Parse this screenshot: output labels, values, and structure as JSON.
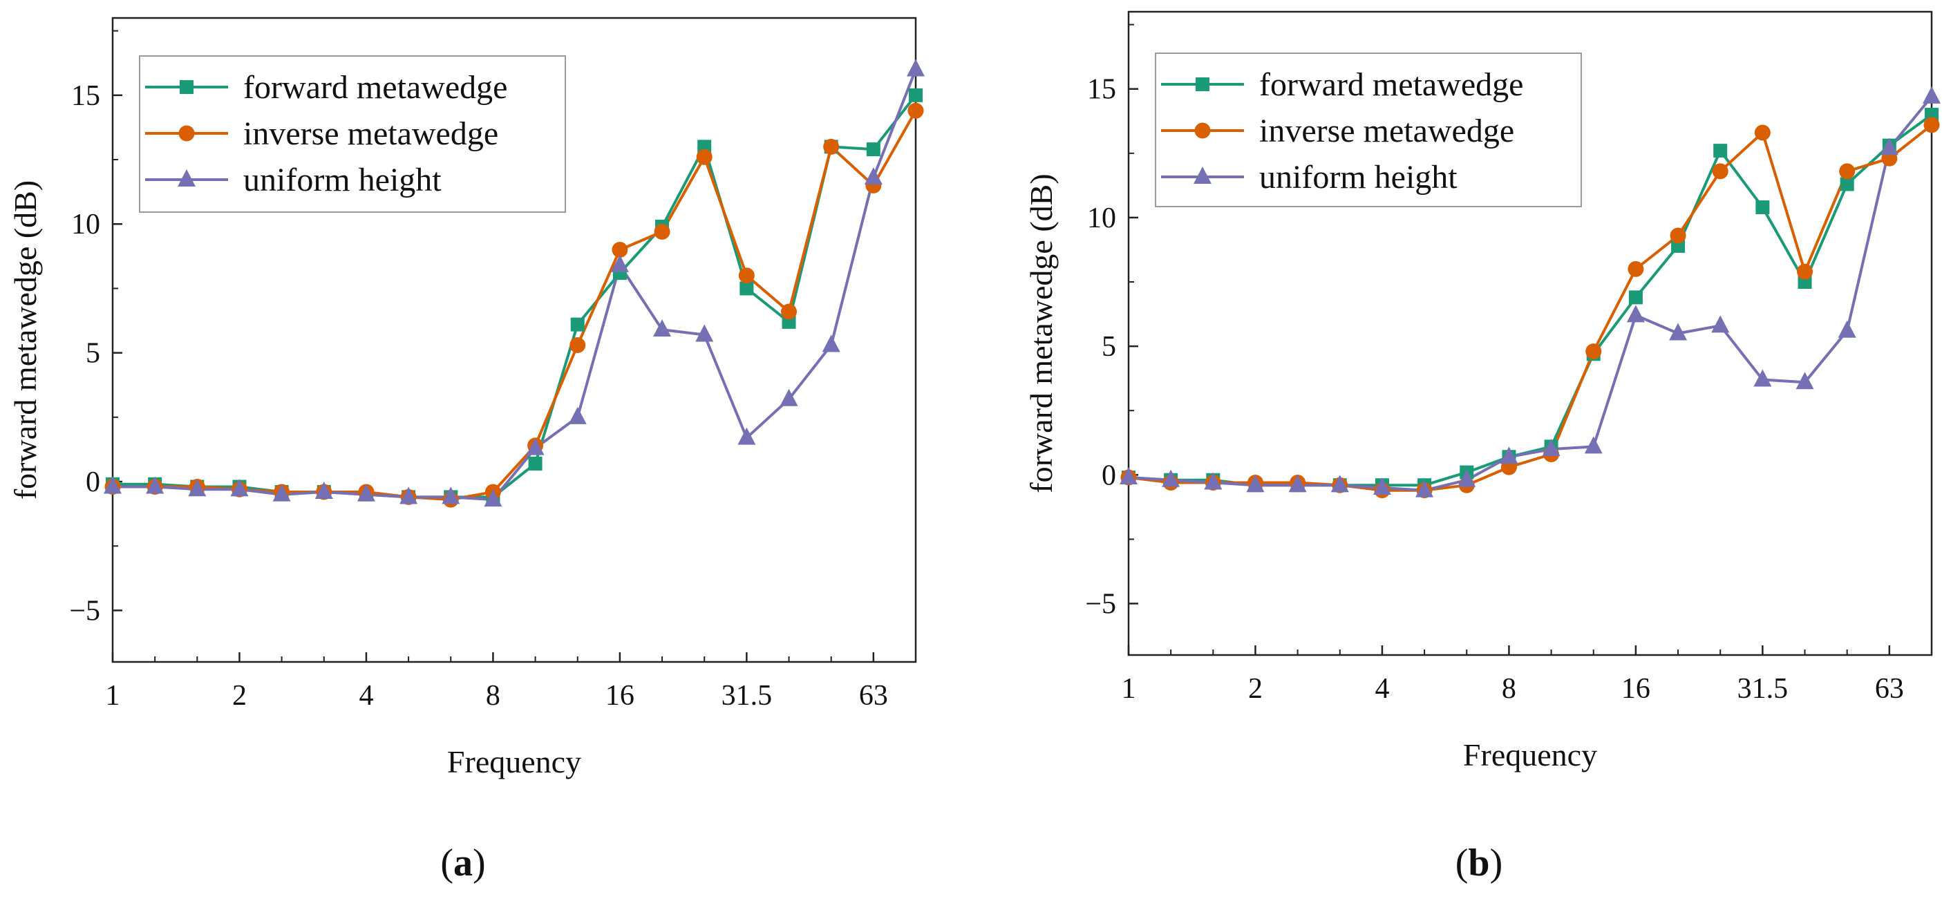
{
  "chart_data": [
    {
      "type": "line",
      "panel_label": "a",
      "xlabel": "Frequency",
      "ylabel": "forward metawedge (dB)",
      "x_tick_labels": [
        "1",
        "2",
        "4",
        "8",
        "16",
        "31.5",
        "63"
      ],
      "x_tick_values": [
        0,
        3,
        6,
        9,
        12,
        15,
        18
      ],
      "xlim": [
        0,
        19
      ],
      "ylim": [
        -7,
        18
      ],
      "y_ticks": [
        -5,
        0,
        5,
        10,
        15
      ],
      "y_tick_labels": [
        "−5",
        "0",
        "5",
        "10",
        "15"
      ],
      "legend_position": "top-left",
      "series": [
        {
          "name": "forward metawedge",
          "color": "#1a9a77",
          "marker": "square",
          "x": [
            0,
            1,
            2,
            3,
            4,
            5,
            6,
            7,
            8,
            9,
            10,
            11,
            12,
            13,
            14,
            15,
            16,
            17,
            18,
            19
          ],
          "values": [
            -0.1,
            -0.1,
            -0.2,
            -0.2,
            -0.4,
            -0.4,
            -0.5,
            -0.6,
            -0.6,
            -0.6,
            0.7,
            6.1,
            8.1,
            9.9,
            13.0,
            7.5,
            6.2,
            13.0,
            12.9,
            15.0
          ]
        },
        {
          "name": "inverse metawedge",
          "color": "#d95f02",
          "marker": "circle",
          "x": [
            0,
            1,
            2,
            3,
            4,
            5,
            6,
            7,
            8,
            9,
            10,
            11,
            12,
            13,
            14,
            15,
            16,
            17,
            18,
            19
          ],
          "values": [
            -0.2,
            -0.2,
            -0.2,
            -0.3,
            -0.4,
            -0.4,
            -0.4,
            -0.6,
            -0.7,
            -0.4,
            1.4,
            5.3,
            9.0,
            9.7,
            12.6,
            8.0,
            6.6,
            13.0,
            11.5,
            14.4
          ]
        },
        {
          "name": "uniform height",
          "color": "#7570b3",
          "marker": "triangle",
          "x": [
            0,
            1,
            2,
            3,
            4,
            5,
            6,
            7,
            8,
            9,
            10,
            11,
            12,
            13,
            14,
            15,
            16,
            17,
            18,
            19
          ],
          "values": [
            -0.2,
            -0.2,
            -0.3,
            -0.3,
            -0.5,
            -0.4,
            -0.5,
            -0.6,
            -0.6,
            -0.7,
            1.3,
            2.5,
            8.4,
            5.9,
            5.7,
            1.7,
            3.2,
            5.3,
            11.8,
            16.0
          ]
        }
      ]
    },
    {
      "type": "line",
      "panel_label": "b",
      "xlabel": "Frequency",
      "ylabel": "forward metawedge (dB)",
      "x_tick_labels": [
        "1",
        "2",
        "4",
        "8",
        "16",
        "31.5",
        "63"
      ],
      "x_tick_values": [
        0,
        3,
        6,
        9,
        12,
        15,
        18
      ],
      "xlim": [
        0,
        19
      ],
      "ylim": [
        -7,
        18
      ],
      "y_ticks": [
        -5,
        0,
        5,
        10,
        15
      ],
      "y_tick_labels": [
        "−5",
        "0",
        "5",
        "10",
        "15"
      ],
      "legend_position": "top-left",
      "series": [
        {
          "name": "forward metawedge",
          "color": "#1a9a77",
          "marker": "square",
          "x": [
            0,
            1,
            2,
            3,
            4,
            5,
            6,
            7,
            8,
            9,
            10,
            11,
            12,
            13,
            14,
            15,
            16,
            17,
            18,
            19
          ],
          "values": [
            -0.1,
            -0.2,
            -0.2,
            -0.4,
            -0.4,
            -0.4,
            -0.4,
            -0.4,
            0.1,
            0.7,
            1.1,
            4.7,
            6.9,
            8.9,
            12.6,
            10.4,
            7.5,
            11.3,
            12.8,
            14.0
          ]
        },
        {
          "name": "inverse metawedge",
          "color": "#d95f02",
          "marker": "circle",
          "x": [
            0,
            1,
            2,
            3,
            4,
            5,
            6,
            7,
            8,
            9,
            10,
            11,
            12,
            13,
            14,
            15,
            16,
            17,
            18,
            19
          ],
          "values": [
            -0.1,
            -0.3,
            -0.3,
            -0.3,
            -0.3,
            -0.4,
            -0.6,
            -0.6,
            -0.4,
            0.3,
            0.8,
            4.8,
            8.0,
            9.3,
            11.8,
            13.3,
            7.9,
            11.8,
            12.3,
            13.6
          ]
        },
        {
          "name": "uniform height",
          "color": "#7570b3",
          "marker": "triangle",
          "x": [
            0,
            1,
            2,
            3,
            4,
            5,
            6,
            7,
            8,
            9,
            10,
            11,
            12,
            13,
            14,
            15,
            16,
            17,
            18,
            19
          ],
          "values": [
            -0.1,
            -0.2,
            -0.3,
            -0.4,
            -0.4,
            -0.4,
            -0.5,
            -0.6,
            -0.2,
            0.7,
            1.0,
            1.1,
            6.2,
            5.5,
            5.8,
            3.7,
            3.6,
            5.6,
            12.7,
            14.7
          ]
        }
      ]
    }
  ]
}
